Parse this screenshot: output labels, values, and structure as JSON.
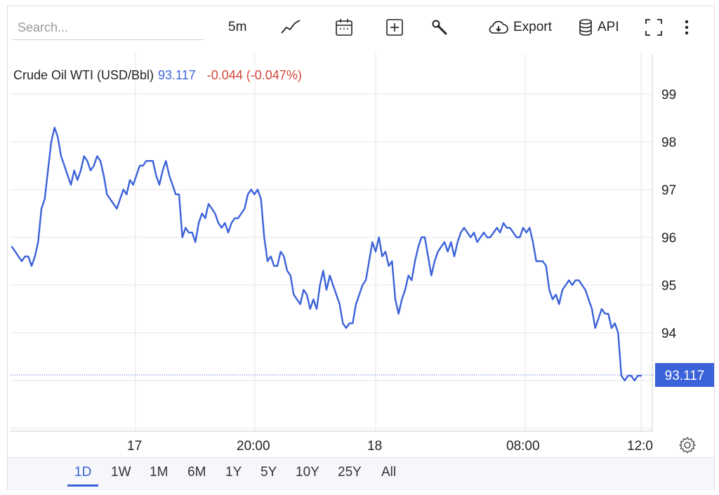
{
  "toolbar": {
    "search_placeholder": "Search...",
    "interval": "5m",
    "export_label": "Export",
    "api_label": "API"
  },
  "legend": {
    "instrument": "Crude Oil WTI (USD/Bbl)",
    "price": "93.117",
    "change": "-0.044 (-0.047%)"
  },
  "price_label": "93.117",
  "ranges": {
    "items": [
      "1D",
      "1W",
      "1M",
      "6M",
      "1Y",
      "5Y",
      "10Y",
      "25Y",
      "All"
    ],
    "active": "1D"
  },
  "colors": {
    "line": "#3b62d9",
    "negative": "#d3463a",
    "grid": "#e6e6e6",
    "label_bg": "#3b62d9"
  },
  "chart_data": {
    "type": "line",
    "title": "Crude Oil WTI (USD/Bbl)",
    "xlabel": "",
    "ylabel": "",
    "ylim": [
      92.0,
      100.0
    ],
    "y_ticks": [
      99,
      98,
      97,
      96,
      95,
      94
    ],
    "x_ticks": [
      "17",
      "20:00",
      "18",
      "08:00",
      "12:0"
    ],
    "grid": true,
    "last_value": 93.117,
    "series": [
      {
        "values": [
          95.8,
          95.7,
          95.6,
          95.5,
          95.6,
          95.6,
          95.4,
          95.6,
          95.9,
          96.6,
          96.8,
          97.4,
          98.0,
          98.3,
          98.1,
          97.7,
          97.5,
          97.3,
          97.1,
          97.4,
          97.2,
          97.4,
          97.7,
          97.6,
          97.4,
          97.5,
          97.7,
          97.6,
          97.3,
          96.9,
          96.8,
          96.7,
          96.6,
          96.8,
          97.0,
          96.9,
          97.2,
          97.1,
          97.3,
          97.5,
          97.5,
          97.6,
          97.6,
          97.6,
          97.3,
          97.1,
          97.4,
          97.6,
          97.3,
          97.1,
          96.9,
          96.9,
          96.0,
          96.2,
          96.1,
          96.1,
          95.9,
          96.3,
          96.5,
          96.4,
          96.7,
          96.6,
          96.5,
          96.3,
          96.2,
          96.3,
          96.1,
          96.3,
          96.4,
          96.4,
          96.5,
          96.6,
          96.9,
          97.0,
          96.9,
          97.0,
          96.8,
          96.0,
          95.5,
          95.6,
          95.4,
          95.4,
          95.7,
          95.6,
          95.3,
          95.2,
          94.8,
          94.7,
          94.6,
          94.9,
          94.8,
          94.5,
          94.7,
          94.5,
          95.0,
          95.3,
          94.9,
          95.2,
          95.0,
          94.8,
          94.6,
          94.2,
          94.1,
          94.2,
          94.2,
          94.6,
          94.8,
          95.0,
          95.1,
          95.5,
          95.9,
          95.7,
          96.0,
          95.6,
          95.7,
          95.4,
          95.5,
          94.7,
          94.4,
          94.7,
          94.9,
          95.2,
          95.1,
          95.5,
          95.8,
          96.0,
          96.0,
          95.6,
          95.2,
          95.5,
          95.7,
          95.8,
          95.9,
          95.7,
          95.9,
          95.6,
          95.9,
          96.1,
          96.2,
          96.1,
          96.0,
          96.1,
          95.9,
          96.0,
          96.1,
          96.0,
          96.0,
          96.1,
          96.2,
          96.1,
          96.3,
          96.2,
          96.2,
          96.1,
          96.0,
          96.0,
          96.2,
          96.1,
          96.2,
          95.9,
          95.5,
          95.5,
          95.5,
          95.4,
          94.9,
          94.7,
          94.8,
          94.6,
          94.9,
          95.0,
          95.1,
          95.0,
          95.1,
          95.1,
          95.0,
          94.9,
          94.7,
          94.5,
          94.1,
          94.3,
          94.5,
          94.4,
          94.4,
          94.1,
          94.2,
          94.0,
          93.1,
          93.0,
          93.1,
          93.1,
          93.0,
          93.1,
          93.1
        ]
      }
    ]
  }
}
